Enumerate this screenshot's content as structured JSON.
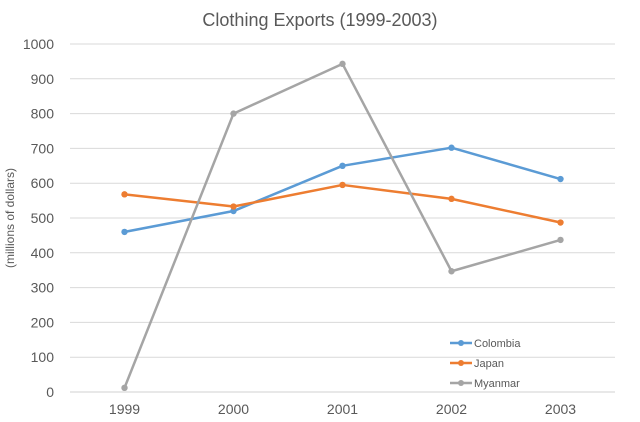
{
  "chart_data": {
    "type": "line",
    "title": "Clothing Exports (1999-2003)",
    "xlabel": "",
    "ylabel": "(millions of dollars)",
    "categories": [
      "1999",
      "2000",
      "2001",
      "2002",
      "2003"
    ],
    "ylim": [
      0,
      1000
    ],
    "yticks": [
      "0",
      "100",
      "200",
      "300",
      "400",
      "500",
      "600",
      "700",
      "800",
      "900",
      "1000"
    ],
    "grid": true,
    "legend_position": "bottom-right",
    "series": [
      {
        "name": "Colombia",
        "color": "#5B9BD5",
        "values": [
          460,
          520,
          650,
          702,
          612
        ]
      },
      {
        "name": "Japan",
        "color": "#ED7D31",
        "values": [
          568,
          533,
          595,
          555,
          487
        ]
      },
      {
        "name": "Myanmar",
        "color": "#A5A5A5",
        "values": [
          12,
          800,
          943,
          347,
          437
        ]
      }
    ]
  }
}
